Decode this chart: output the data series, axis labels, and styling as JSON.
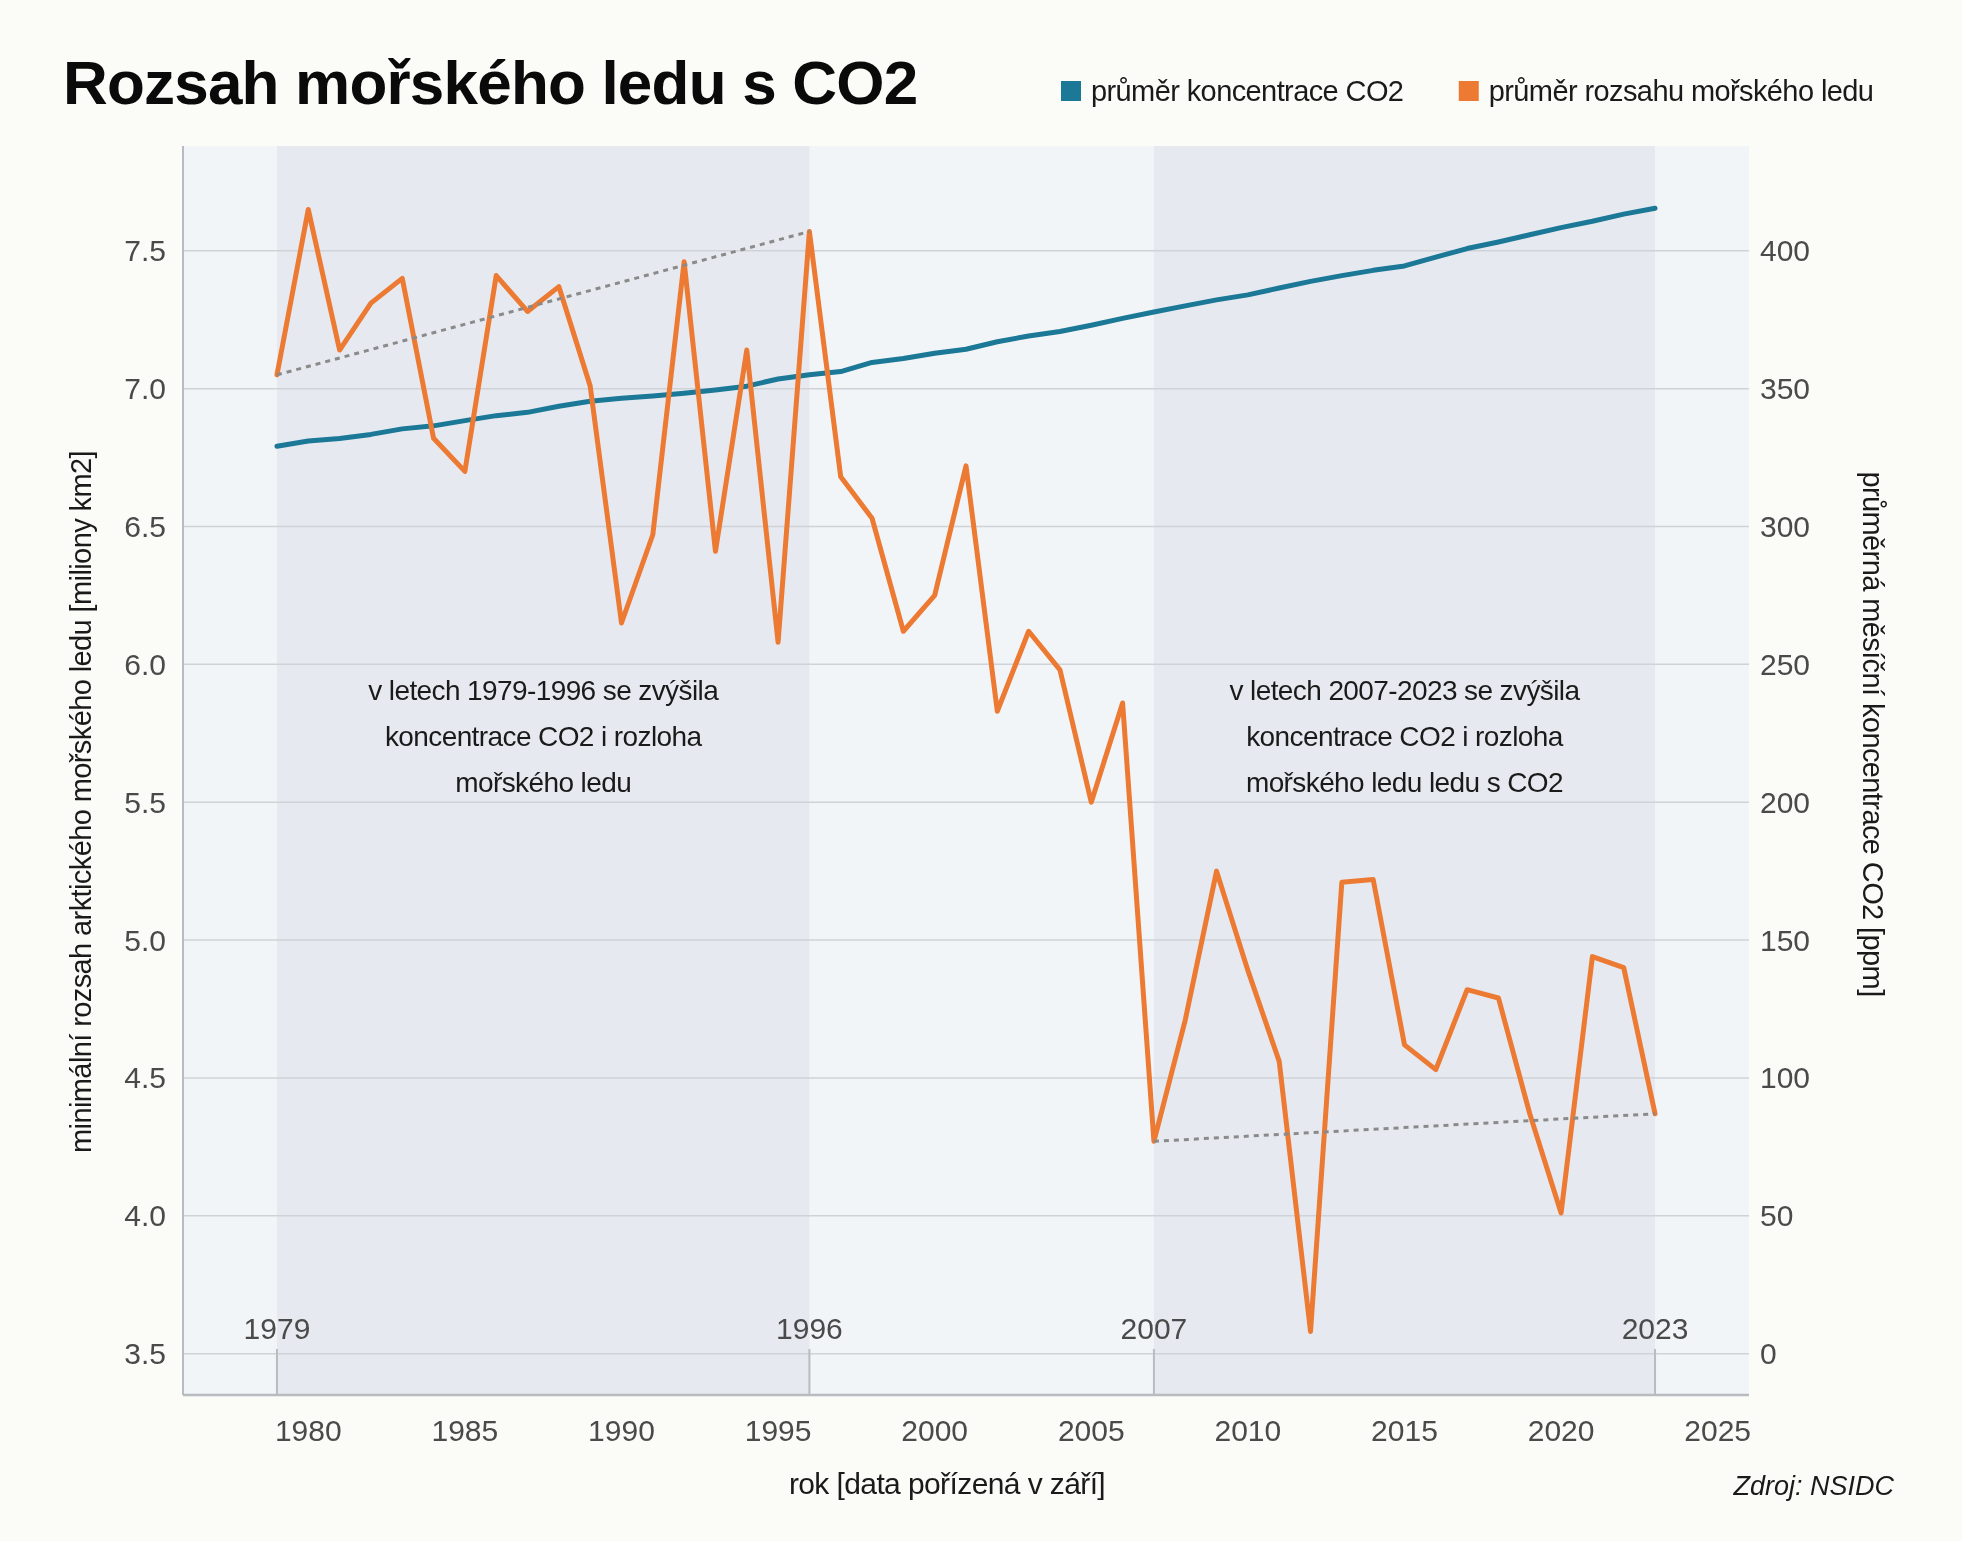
{
  "chart_data": {
    "type": "line",
    "title": "Rozsah mořského ledu s CO2",
    "xlabel": "rok [data pořízená v září]",
    "ylabel": "minimální rozsah arktického mořského ledu [miliony km2]",
    "y2label": "průměrná měsíční koncentrace CO2 [ppm]",
    "x": [
      1979,
      1980,
      1981,
      1982,
      1983,
      1984,
      1985,
      1986,
      1987,
      1988,
      1989,
      1990,
      1991,
      1992,
      1993,
      1994,
      1995,
      1996,
      1997,
      1998,
      1999,
      2000,
      2001,
      2002,
      2003,
      2004,
      2005,
      2006,
      2007,
      2008,
      2009,
      2010,
      2011,
      2012,
      2013,
      2014,
      2015,
      2016,
      2017,
      2018,
      2019,
      2020,
      2021,
      2022,
      2023
    ],
    "series": [
      {
        "name": "průměr koncentrace CO2",
        "color": "#1b7896",
        "axis": "y2",
        "values": [
          329.1,
          331.0,
          331.9,
          333.4,
          335.4,
          336.5,
          338.4,
          340.2,
          341.4,
          343.6,
          345.4,
          346.5,
          347.3,
          348.3,
          349.5,
          350.9,
          353.5,
          355.0,
          356.2,
          359.5,
          360.9,
          362.8,
          364.3,
          367.0,
          369.1,
          370.7,
          373.0,
          375.5,
          377.8,
          380.0,
          382.2,
          384.0,
          386.5,
          388.9,
          391.0,
          392.9,
          394.5,
          397.7,
          400.8,
          403.2,
          405.8,
          408.4,
          410.7,
          413.3,
          415.4
        ]
      },
      {
        "name": "průměr rozsahu mořského ledu",
        "color": "#ec7a33",
        "values": [
          7.05,
          7.65,
          7.14,
          7.31,
          7.4,
          6.82,
          6.7,
          7.41,
          7.28,
          7.37,
          7.01,
          6.15,
          6.47,
          7.46,
          6.41,
          7.14,
          6.08,
          7.57,
          6.68,
          6.53,
          6.12,
          6.25,
          6.72,
          5.83,
          6.12,
          5.98,
          5.5,
          5.86,
          4.27,
          4.71,
          5.25,
          4.89,
          4.56,
          3.58,
          5.21,
          5.22,
          4.62,
          4.53,
          4.82,
          4.79,
          4.37,
          4.01,
          4.94,
          4.9,
          4.37
        ]
      },
      {
        "color": "#8a8a8a",
        "x": [
          1979,
          1996
        ],
        "values": [
          7.05,
          7.57
        ],
        "line_style": "dotted"
      },
      {
        "color": "#8a8a8a",
        "x": [
          2007,
          2023
        ],
        "values": [
          4.27,
          4.37
        ],
        "line_style": "dotted"
      }
    ],
    "xlim": [
      1976,
      2026
    ],
    "xticks": [
      1980,
      1985,
      1990,
      1995,
      2000,
      2005,
      2010,
      2015,
      2020,
      2025
    ],
    "ylim": [
      3.35,
      7.88
    ],
    "yticks": [
      3.5,
      {
        "value": 4,
        "label": "4.0"
      },
      4.5,
      {
        "value": 5,
        "label": "5.0"
      },
      5.5,
      {
        "value": 6,
        "label": "6.0"
      },
      6.5,
      {
        "value": 7,
        "label": "7.0"
      },
      7.5
    ],
    "y2lim": [
      -15,
      438
    ],
    "y2ticks": [
      0,
      50,
      100,
      150,
      200,
      250,
      300,
      350,
      400
    ],
    "grid": "y",
    "legend": "top right",
    "ref_lines": [
      {
        "axis": "x",
        "value": 1979,
        "label": "1979"
      },
      {
        "axis": "x",
        "value": 1996,
        "label": "1996"
      },
      {
        "axis": "x",
        "value": 2007,
        "label": "2007"
      },
      {
        "axis": "x",
        "value": 2023,
        "label": "2023"
      }
    ],
    "bands": [
      {
        "axis": "x",
        "from": 1979,
        "to": 1996,
        "color": "#e6eaf0",
        "label": "v letech 1979-1996 se zvýšila\nkoncentrace CO2 i rozloha\nmořského ledu"
      },
      {
        "axis": "x",
        "from": 2007,
        "to": 2023,
        "color": "#e6eaf0",
        "label": "v letech 2007-2023 se zvýšila\nkoncentrace CO2 i rozloha\nmořského ledu ledu s CO2"
      }
    ],
    "annotations": [
      "Zdroj: NSIDC"
    ]
  }
}
